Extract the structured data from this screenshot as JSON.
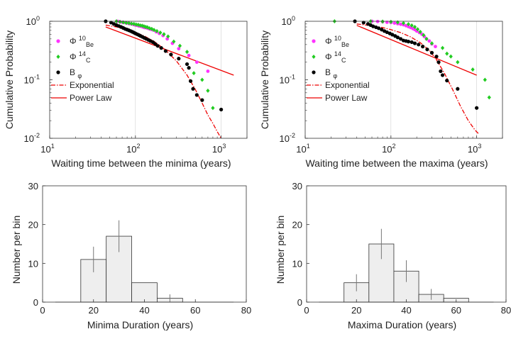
{
  "colors": {
    "phi_be": "#ff33ff",
    "phi_c": "#22cc22",
    "b_phi": "#000000",
    "fit": "#ee0000",
    "bar_fill": "#eeeeee",
    "bar_stroke": "#333333",
    "error_bar": "#777777"
  },
  "legend": {
    "phi_be": {
      "symbol": "Φ",
      "sup": "10",
      "sub": "Be"
    },
    "phi_c": {
      "symbol": "Φ",
      "sup": "14",
      "sub": "C"
    },
    "b_phi": {
      "symbol": "B",
      "sub": "φ"
    },
    "exponential": "Exponential",
    "power_law": "Power Law"
  },
  "chart_data": [
    {
      "id": "minima-waiting",
      "type": "scatter",
      "xscale": "log",
      "yscale": "log",
      "xlim": [
        10,
        2000
      ],
      "ylim": [
        0.01,
        1
      ],
      "xlabel": "Waiting time between the minima (years)",
      "ylabel": "Cumulative Probability",
      "xticks": [
        {
          "v": 10,
          "b": "10",
          "e": "1"
        },
        {
          "v": 100,
          "b": "10",
          "e": "2"
        },
        {
          "v": 1000,
          "b": "10",
          "e": "3"
        }
      ],
      "yticks": [
        {
          "v": 0.01,
          "b": "10",
          "e": "-2"
        },
        {
          "v": 0.1,
          "b": "10",
          "e": "-1"
        },
        {
          "v": 1,
          "b": "10",
          "e": "0"
        }
      ],
      "grid_x": [
        100,
        1000
      ],
      "legend_position": "left",
      "series": [
        {
          "name": "phi_be",
          "points": [
            [
              62,
              1.0
            ],
            [
              66,
              0.98
            ],
            [
              70,
              0.96
            ],
            [
              75,
              0.95
            ],
            [
              80,
              0.93
            ],
            [
              85,
              0.91
            ],
            [
              90,
              0.9
            ],
            [
              95,
              0.88
            ],
            [
              100,
              0.86
            ],
            [
              105,
              0.85
            ],
            [
              110,
              0.83
            ],
            [
              116,
              0.82
            ],
            [
              122,
              0.8
            ],
            [
              128,
              0.78
            ],
            [
              135,
              0.77
            ],
            [
              142,
              0.75
            ],
            [
              150,
              0.73
            ],
            [
              160,
              0.71
            ],
            [
              175,
              0.66
            ],
            [
              190,
              0.62
            ],
            [
              210,
              0.57
            ],
            [
              235,
              0.5
            ],
            [
              270,
              0.42
            ],
            [
              320,
              0.34
            ],
            [
              420,
              0.26
            ],
            [
              520,
              0.2
            ],
            [
              700,
              0.14
            ]
          ]
        },
        {
          "name": "phi_c",
          "points": [
            [
              60,
              1.0
            ],
            [
              66,
              0.98
            ],
            [
              72,
              0.96
            ],
            [
              78,
              0.94
            ],
            [
              84,
              0.93
            ],
            [
              90,
              0.91
            ],
            [
              96,
              0.9
            ],
            [
              102,
              0.88
            ],
            [
              108,
              0.87
            ],
            [
              114,
              0.85
            ],
            [
              120,
              0.84
            ],
            [
              126,
              0.82
            ],
            [
              132,
              0.8
            ],
            [
              138,
              0.79
            ],
            [
              146,
              0.76
            ],
            [
              155,
              0.74
            ],
            [
              165,
              0.71
            ],
            [
              178,
              0.68
            ],
            [
              195,
              0.64
            ],
            [
              215,
              0.6
            ],
            [
              240,
              0.55
            ],
            [
              280,
              0.45
            ],
            [
              330,
              0.38
            ],
            [
              400,
              0.3
            ],
            [
              480,
              0.13
            ],
            [
              600,
              0.1
            ],
            [
              700,
              0.065
            ],
            [
              800,
              0.033
            ]
          ]
        },
        {
          "name": "b_phi",
          "points": [
            [
              45,
              1.0
            ],
            [
              52,
              0.95
            ],
            [
              56,
              0.9
            ],
            [
              60,
              0.86
            ],
            [
              64,
              0.83
            ],
            [
              68,
              0.8
            ],
            [
              72,
              0.77
            ],
            [
              76,
              0.74
            ],
            [
              80,
              0.72
            ],
            [
              84,
              0.7
            ],
            [
              88,
              0.68
            ],
            [
              92,
              0.66
            ],
            [
              96,
              0.64
            ],
            [
              100,
              0.62
            ],
            [
              105,
              0.6
            ],
            [
              110,
              0.58
            ],
            [
              115,
              0.56
            ],
            [
              121,
              0.54
            ],
            [
              127,
              0.52
            ],
            [
              134,
              0.5
            ],
            [
              142,
              0.48
            ],
            [
              150,
              0.46
            ],
            [
              160,
              0.44
            ],
            [
              170,
              0.41
            ],
            [
              182,
              0.38
            ],
            [
              200,
              0.35
            ],
            [
              225,
              0.31
            ],
            [
              260,
              0.27
            ],
            [
              320,
              0.23
            ],
            [
              400,
              0.185
            ],
            [
              420,
              0.16
            ],
            [
              440,
              0.095
            ],
            [
              470,
              0.07
            ],
            [
              520,
              0.055
            ],
            [
              600,
              0.045
            ],
            [
              1000,
              0.031
            ]
          ]
        }
      ],
      "fits": [
        {
          "name": "exponential",
          "style": "dashdot",
          "points": [
            [
              45,
              0.86
            ],
            [
              60,
              0.8
            ],
            [
              80,
              0.72
            ],
            [
              100,
              0.65
            ],
            [
              130,
              0.55
            ],
            [
              170,
              0.44
            ],
            [
              220,
              0.33
            ],
            [
              300,
              0.21
            ],
            [
              400,
              0.12
            ],
            [
              500,
              0.068
            ],
            [
              600,
              0.04
            ],
            [
              700,
              0.025
            ],
            [
              800,
              0.018
            ],
            [
              900,
              0.013
            ],
            [
              1000,
              0.01
            ]
          ]
        },
        {
          "name": "power_law",
          "style": "solid",
          "points": [
            [
              45,
              0.8
            ],
            [
              1400,
              0.12
            ]
          ]
        }
      ]
    },
    {
      "id": "maxima-waiting",
      "type": "scatter",
      "xscale": "log",
      "yscale": "log",
      "xlim": [
        10,
        2000
      ],
      "ylim": [
        0.01,
        1
      ],
      "xlabel": "Waiting time between the maxima (years)",
      "ylabel": "Cumulative Probability",
      "xticks": [
        {
          "v": 10,
          "b": "10",
          "e": "1"
        },
        {
          "v": 100,
          "b": "10",
          "e": "2"
        },
        {
          "v": 1000,
          "b": "10",
          "e": "3"
        }
      ],
      "yticks": [
        {
          "v": 0.01,
          "b": "10",
          "e": "-2"
        },
        {
          "v": 0.1,
          "b": "10",
          "e": "-1"
        },
        {
          "v": 1,
          "b": "10",
          "e": "0"
        }
      ],
      "grid_x": [
        100,
        1000
      ],
      "legend_position": "left",
      "series": [
        {
          "name": "phi_be",
          "points": [
            [
              60,
              1.0
            ],
            [
              70,
              0.99
            ],
            [
              80,
              0.98
            ],
            [
              90,
              0.96
            ],
            [
              100,
              0.95
            ],
            [
              110,
              0.93
            ],
            [
              120,
              0.91
            ],
            [
              130,
              0.89
            ],
            [
              140,
              0.87
            ],
            [
              150,
              0.84
            ],
            [
              160,
              0.81
            ],
            [
              170,
              0.78
            ],
            [
              180,
              0.75
            ],
            [
              190,
              0.72
            ],
            [
              200,
              0.68
            ],
            [
              215,
              0.64
            ],
            [
              230,
              0.6
            ],
            [
              245,
              0.55
            ],
            [
              260,
              0.5
            ],
            [
              280,
              0.46
            ],
            [
              300,
              0.41
            ],
            [
              330,
              0.37
            ]
          ]
        },
        {
          "name": "phi_c",
          "points": [
            [
              22,
              1.0
            ],
            [
              58,
              1.0
            ],
            [
              80,
              0.99
            ],
            [
              100,
              0.98
            ],
            [
              120,
              0.96
            ],
            [
              140,
              0.93
            ],
            [
              160,
              0.89
            ],
            [
              175,
              0.85
            ],
            [
              190,
              0.8
            ],
            [
              205,
              0.73
            ],
            [
              220,
              0.66
            ],
            [
              240,
              0.58
            ],
            [
              260,
              0.5
            ],
            [
              300,
              0.42
            ],
            [
              400,
              0.35
            ],
            [
              450,
              0.28
            ],
            [
              500,
              0.25
            ],
            [
              600,
              0.2
            ],
            [
              900,
              0.15
            ],
            [
              1250,
              0.1
            ],
            [
              1400,
              0.05
            ]
          ]
        },
        {
          "name": "b_phi",
          "points": [
            [
              38,
              1.0
            ],
            [
              48,
              0.95
            ],
            [
              54,
              0.9
            ],
            [
              58,
              0.86
            ],
            [
              62,
              0.82
            ],
            [
              67,
              0.79
            ],
            [
              72,
              0.76
            ],
            [
              78,
              0.72
            ],
            [
              84,
              0.68
            ],
            [
              90,
              0.65
            ],
            [
              97,
              0.62
            ],
            [
              104,
              0.59
            ],
            [
              112,
              0.56
            ],
            [
              120,
              0.53
            ],
            [
              130,
              0.5
            ],
            [
              140,
              0.47
            ],
            [
              150,
              0.46
            ],
            [
              160,
              0.45
            ],
            [
              175,
              0.44
            ],
            [
              190,
              0.42
            ],
            [
              210,
              0.4
            ],
            [
              235,
              0.37
            ],
            [
              265,
              0.33
            ],
            [
              300,
              0.29
            ],
            [
              340,
              0.25
            ],
            [
              360,
              0.2
            ],
            [
              380,
              0.14
            ],
            [
              400,
              0.12
            ],
            [
              450,
              0.097
            ],
            [
              600,
              0.07
            ],
            [
              1000,
              0.033
            ]
          ]
        }
      ],
      "fits": [
        {
          "name": "exponential",
          "style": "dashdot",
          "points": [
            [
              40,
              0.9
            ],
            [
              60,
              0.84
            ],
            [
              80,
              0.78
            ],
            [
              100,
              0.72
            ],
            [
              130,
              0.64
            ],
            [
              170,
              0.54
            ],
            [
              220,
              0.43
            ],
            [
              280,
              0.32
            ],
            [
              340,
              0.22
            ],
            [
              420,
              0.13
            ],
            [
              520,
              0.07
            ],
            [
              650,
              0.035
            ],
            [
              800,
              0.02
            ],
            [
              950,
              0.014
            ],
            [
              1050,
              0.012
            ]
          ]
        },
        {
          "name": "power_law",
          "style": "solid",
          "points": [
            [
              40,
              0.85
            ],
            [
              1000,
              0.12
            ]
          ]
        }
      ]
    },
    {
      "id": "minima-duration",
      "type": "bar",
      "xlim": [
        0,
        80
      ],
      "ylim": [
        0,
        30
      ],
      "xlabel": "Minima Duration (years)",
      "ylabel": "Number per bin",
      "xticks": [
        0,
        20,
        40,
        60,
        80
      ],
      "yticks": [
        0,
        10,
        20,
        30
      ],
      "bins": [
        {
          "from": 15,
          "to": 25,
          "value": 11,
          "err": 3.3
        },
        {
          "from": 25,
          "to": 35,
          "value": 17,
          "err": 4.1
        },
        {
          "from": 35,
          "to": 45,
          "value": 5,
          "err": 0
        },
        {
          "from": 45,
          "to": 55,
          "value": 1,
          "err": 1
        }
      ]
    },
    {
      "id": "maxima-duration",
      "type": "bar",
      "xlim": [
        0,
        80
      ],
      "ylim": [
        0,
        30
      ],
      "xlabel": "Maxima Duration (years)",
      "ylabel": "Number per bin",
      "xticks": [
        0,
        20,
        40,
        60,
        80
      ],
      "yticks": [
        0,
        10,
        20,
        30
      ],
      "bins": [
        {
          "from": 15,
          "to": 25,
          "value": 5,
          "err": 2.2
        },
        {
          "from": 25,
          "to": 35,
          "value": 15,
          "err": 3.9
        },
        {
          "from": 35,
          "to": 45,
          "value": 8,
          "err": 2.8
        },
        {
          "from": 45,
          "to": 55,
          "value": 2,
          "err": 1.4
        },
        {
          "from": 55,
          "to": 65,
          "value": 1,
          "err": 0
        }
      ]
    }
  ]
}
